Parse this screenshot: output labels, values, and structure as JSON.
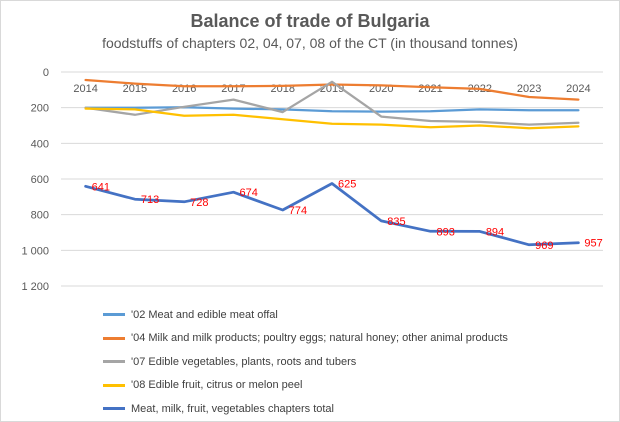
{
  "chart_data": {
    "type": "line",
    "title": "Balance of trade of Bulgaria",
    "subtitle": "foodstuffs of chapters 02, 04, 07, 08 of the CT (in thousand tonnes)",
    "x": [
      "2014",
      "2015",
      "2016",
      "2017",
      "2018",
      "2019",
      "2020",
      "2021",
      "2022",
      "2023",
      "2024"
    ],
    "y_axis": {
      "min": 0,
      "max": 1200,
      "reversed": true,
      "ticks": [
        {
          "value": 0,
          "label": "0"
        },
        {
          "value": 200,
          "label": "200"
        },
        {
          "value": 400,
          "label": "400"
        },
        {
          "value": 600,
          "label": "600"
        },
        {
          "value": 800,
          "label": "800"
        },
        {
          "value": 1000,
          "label": "1 000"
        },
        {
          "value": 1200,
          "label": "1 200"
        }
      ]
    },
    "grid": true,
    "legend_position": "bottom",
    "series": [
      {
        "name": "'02 Meat and edible meat offal",
        "color": "#5B9BD5",
        "width": 2.25,
        "values": [
          200,
          200,
          198,
          205,
          210,
          220,
          222,
          220,
          210,
          215,
          215
        ]
      },
      {
        "name": "'04 Milk and milk products; poultry eggs; natural honey; other animal products",
        "color": "#ED7D31",
        "width": 2.25,
        "values": [
          45,
          65,
          80,
          80,
          78,
          70,
          75,
          85,
          95,
          140,
          155
        ]
      },
      {
        "name": "'07 Edible vegetables, plants, roots and tubers",
        "color": "#A5A5A5",
        "width": 2.25,
        "values": [
          200,
          240,
          195,
          155,
          225,
          55,
          250,
          275,
          280,
          295,
          285
        ]
      },
      {
        "name": "'08 Edible fruit, citrus or melon peel",
        "color": "#FFC000",
        "width": 2.25,
        "values": [
          205,
          210,
          245,
          240,
          265,
          290,
          295,
          310,
          300,
          315,
          305
        ]
      },
      {
        "name": "Meat, milk, fruit, vegetables chapters total",
        "color": "#4472C4",
        "width": 2.75,
        "values": [
          641,
          713,
          728,
          674,
          774,
          625,
          835,
          893,
          894,
          969,
          957
        ],
        "data_labels": [
          "641",
          "713",
          "728",
          "674",
          "774",
          "625",
          "835",
          "893",
          "894",
          "969",
          "957"
        ],
        "label_color": "#FF0000"
      }
    ]
  }
}
